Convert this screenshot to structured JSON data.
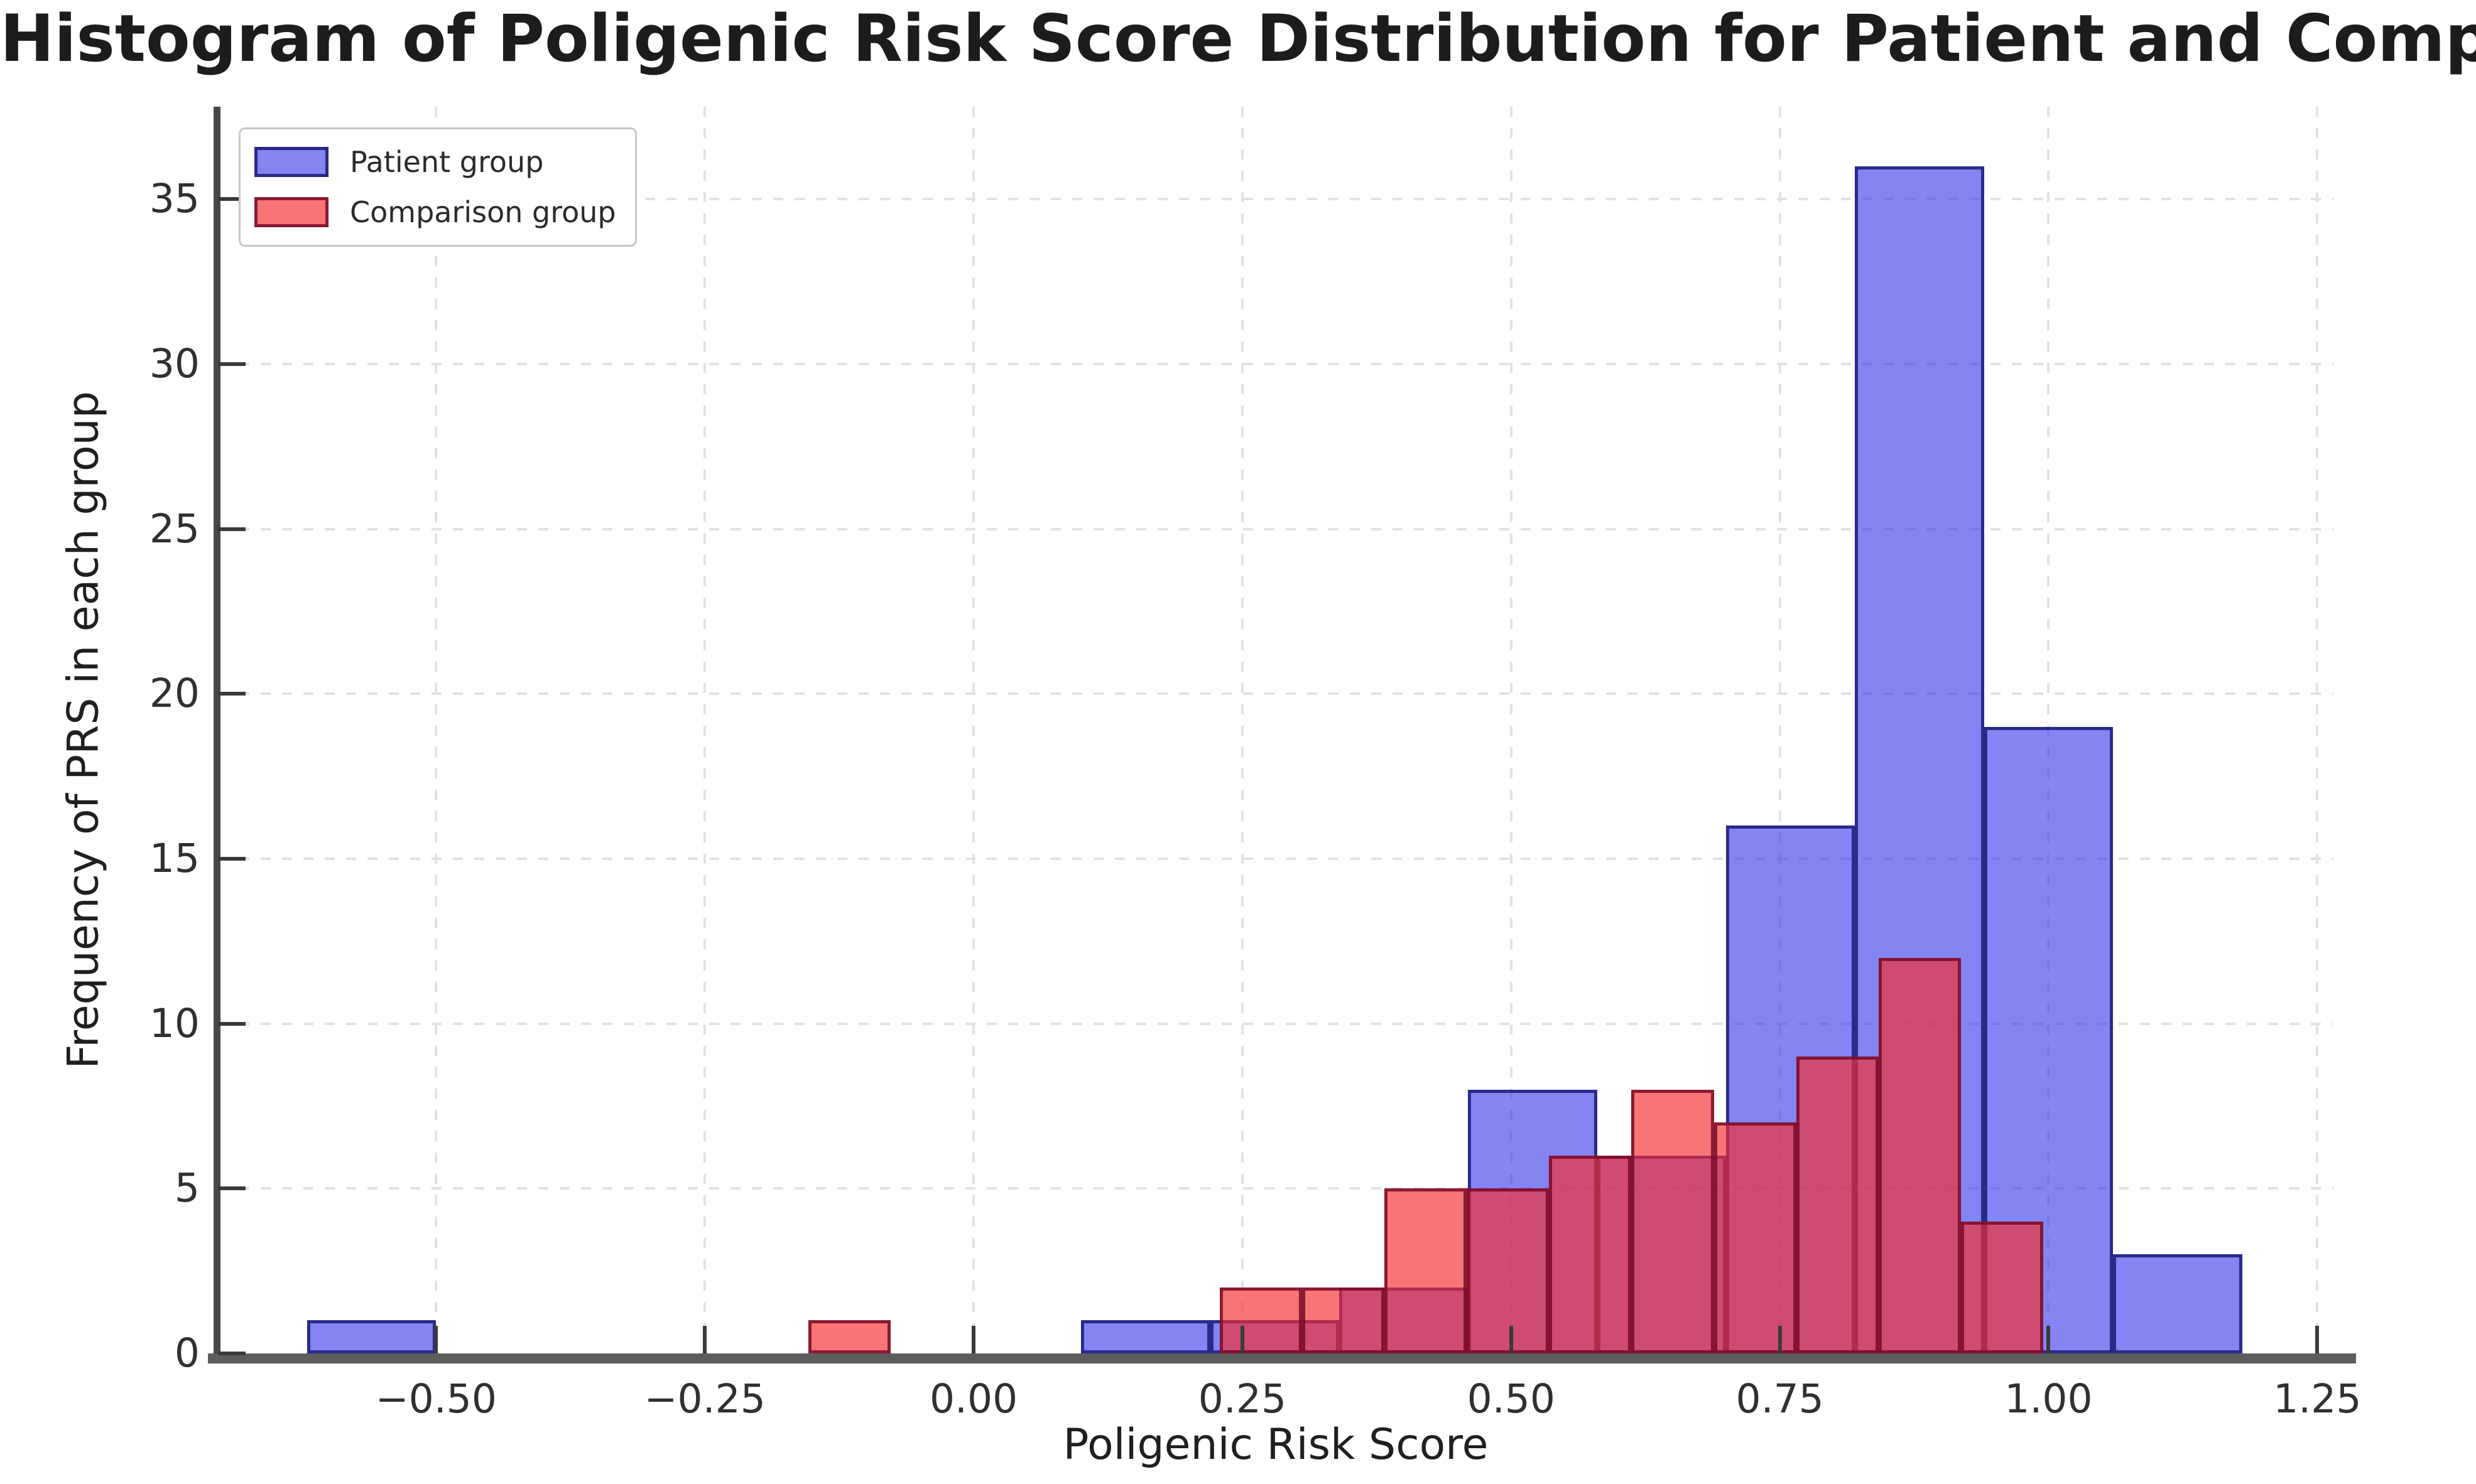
{
  "chart_data": {
    "type": "bar",
    "subtype": "overlaid-histogram",
    "title": "Histogram of Poligenic Risk Score Distribution for Patient and Comparison Groups",
    "xlabel": "Poligenic Risk Score",
    "ylabel": "Frequency of PRS in each group",
    "xlim": [
      -0.703,
      1.265
    ],
    "ylim": [
      0,
      37.8
    ],
    "grid": true,
    "grid_color": "#e2e2e2",
    "legend_position": "upper-left",
    "x_ticks": [
      {
        "value": -0.5,
        "label": "−0.50"
      },
      {
        "value": -0.25,
        "label": "−0.25"
      },
      {
        "value": 0.0,
        "label": "0.00"
      },
      {
        "value": 0.25,
        "label": "0.25"
      },
      {
        "value": 0.5,
        "label": "0.50"
      },
      {
        "value": 0.75,
        "label": "0.75"
      },
      {
        "value": 1.0,
        "label": "1.00"
      },
      {
        "value": 1.25,
        "label": "1.25"
      }
    ],
    "y_ticks": [
      {
        "value": 0,
        "label": "0"
      },
      {
        "value": 5,
        "label": "5"
      },
      {
        "value": 10,
        "label": "10"
      },
      {
        "value": 15,
        "label": "15"
      },
      {
        "value": 20,
        "label": "20"
      },
      {
        "value": 25,
        "label": "25"
      },
      {
        "value": 30,
        "label": "30"
      },
      {
        "value": 35,
        "label": "35"
      }
    ],
    "series": [
      {
        "name": "Patient group",
        "bin_start": -0.62,
        "bin_width": 0.12,
        "counts": [
          1,
          0,
          0,
          0,
          0,
          0,
          1,
          1,
          2,
          8,
          6,
          16,
          36,
          19,
          3
        ],
        "fill_color": "rgba(50,50,235,0.6)",
        "edge_color": "rgba(20,20,110,0.8)",
        "solid_color_hex": "#8181f3"
      },
      {
        "name": "Comparison group",
        "bin_start": -0.154,
        "bin_width": 0.0766,
        "counts": [
          1,
          0,
          0,
          0,
          0,
          2,
          2,
          5,
          5,
          6,
          8,
          7,
          9,
          12,
          4
        ],
        "fill_color": "rgba(245,45,45,0.66)",
        "edge_color": "rgba(120,10,40,0.85)",
        "solid_color_hex": "#f57c7c"
      }
    ],
    "overlap_color_hex": "#cc3377"
  }
}
